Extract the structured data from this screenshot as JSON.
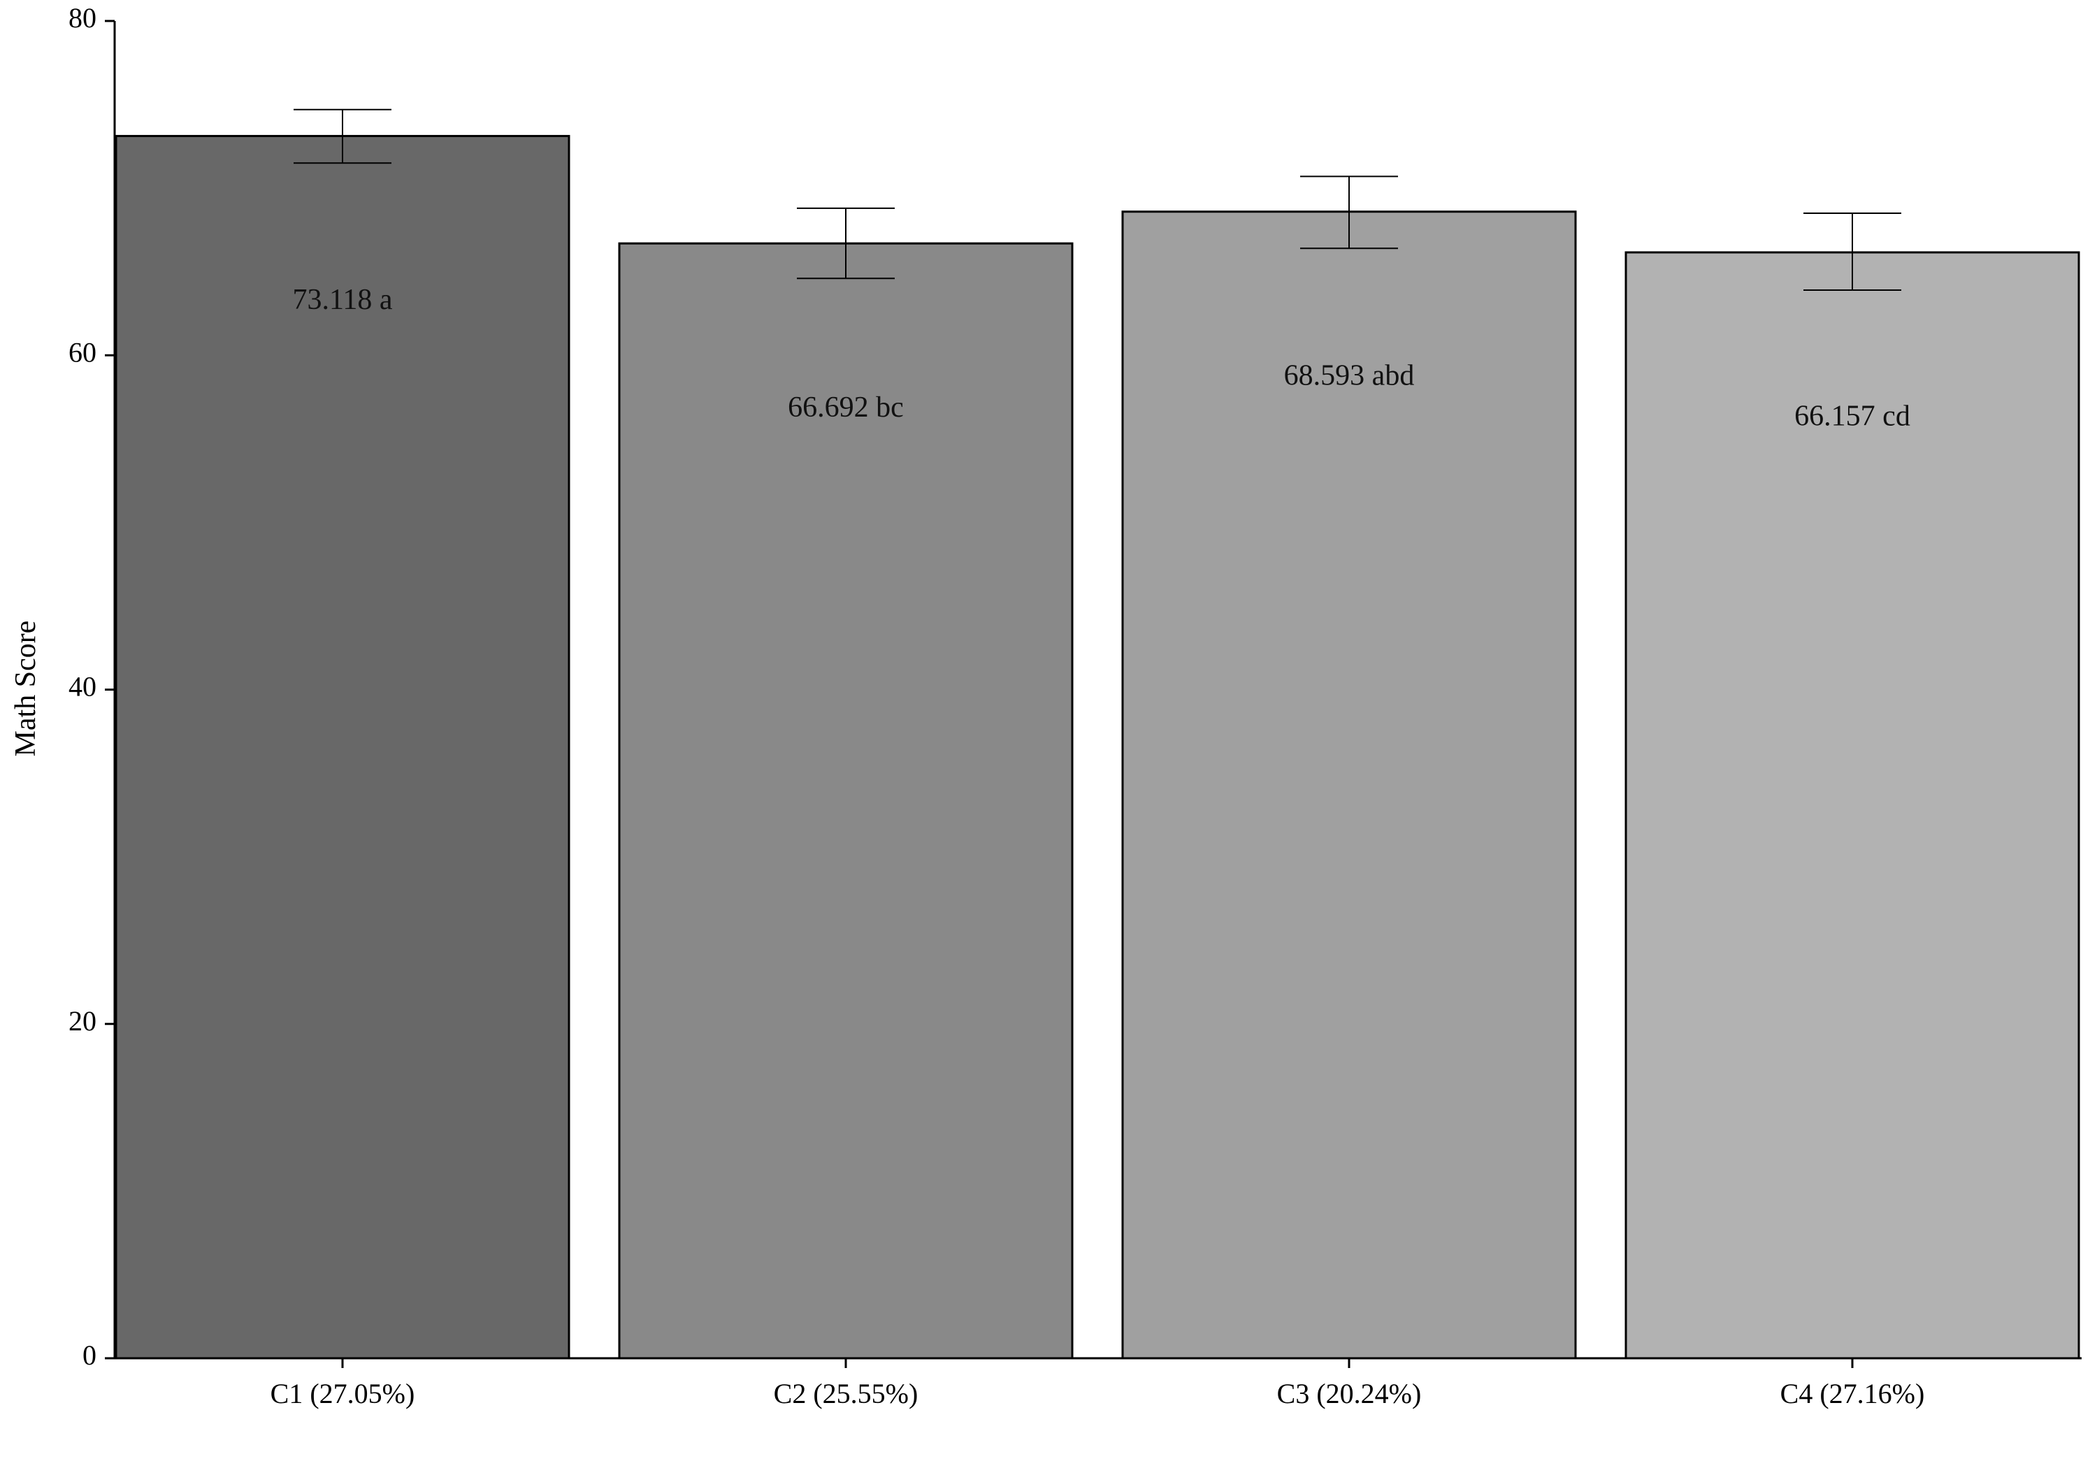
{
  "chart_data": {
    "type": "bar",
    "title": "",
    "xlabel": "",
    "ylabel": "Math Score",
    "ylim": [
      0,
      80
    ],
    "yticks": [
      0,
      20,
      40,
      60,
      80
    ],
    "categories": [
      "C1 (27.05%)",
      "C2 (25.55%)",
      "C3 (20.24%)",
      "C4 (27.16%)"
    ],
    "values": [
      73.118,
      66.692,
      68.593,
      66.157
    ],
    "error_bars": [
      {
        "low": 71.5,
        "high": 74.7
      },
      {
        "low": 64.6,
        "high": 68.8
      },
      {
        "low": 66.4,
        "high": 70.7
      },
      {
        "low": 63.9,
        "high": 68.5
      }
    ],
    "value_labels": [
      "73.118 a",
      "66.692 bc",
      "68.593 abd",
      "66.157 cd"
    ],
    "bar_colors": [
      "#686868",
      "#898989",
      "#a0a0a0",
      "#b2b2b2"
    ],
    "grid": false,
    "legend": "none"
  }
}
